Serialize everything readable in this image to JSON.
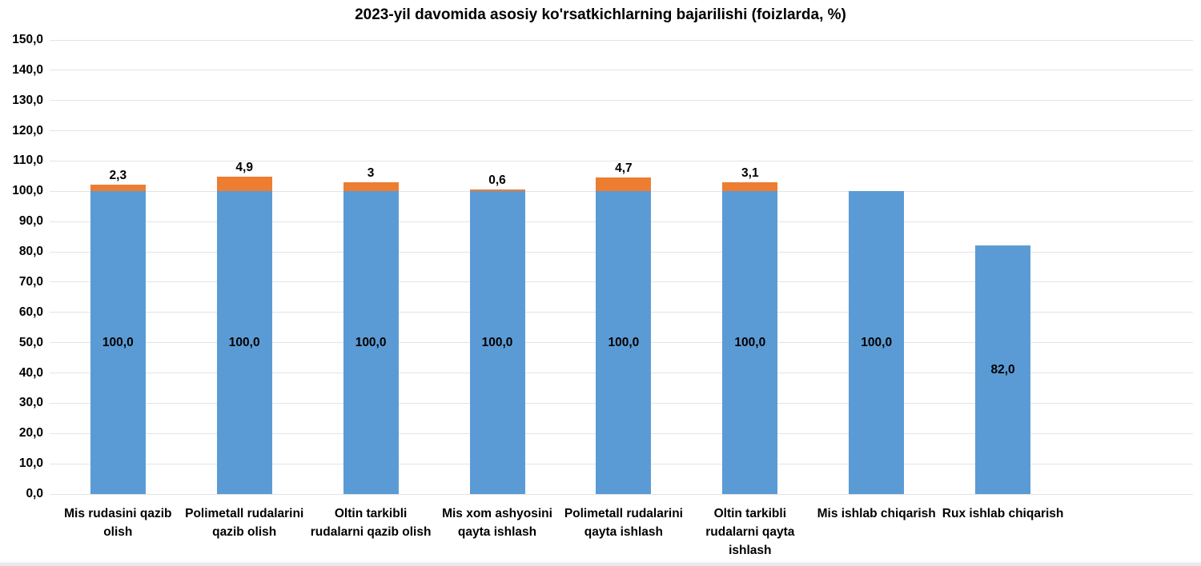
{
  "chart_data": {
    "type": "bar",
    "stacked": true,
    "title": "2023-yil davomida asosiy ko'rsatkichlarning bajarilishi (foizlarda, %)",
    "categories": [
      "Mis rudasini qazib olish",
      "Polimetall rudalarini qazib olish",
      "Oltin tarkibli rudalarni qazib olish",
      "Mis xom ashyosini qayta ishlash",
      "Polimetall rudalarini qayta ishlash",
      "Oltin tarkibli rudalarni qayta ishlash",
      "Mis ishlab chiqarish",
      "Rux ishlab chiqarish"
    ],
    "series": [
      {
        "name": "blue-base",
        "color": "#5B9BD5",
        "values": [
          100.0,
          100.0,
          100.0,
          100.0,
          100.0,
          100.0,
          100.0,
          82.0
        ],
        "labels": [
          "100,0",
          "100,0",
          "100,0",
          "100,0",
          "100,0",
          "100,0",
          "100,0",
          "82,0"
        ]
      },
      {
        "name": "orange-overrun",
        "color": "#ED7D31",
        "values": [
          2.3,
          4.9,
          3,
          0.6,
          4.7,
          3.1,
          0,
          0
        ],
        "labels": [
          "2,3",
          "4,9",
          "3",
          "0,6",
          "4,7",
          "3,1",
          "",
          ""
        ]
      }
    ],
    "y_axis": {
      "min": 0,
      "max": 150,
      "step": 10,
      "tick_labels": [
        "0,0",
        "10,0",
        "20,0",
        "30,0",
        "40,0",
        "50,0",
        "60,0",
        "70,0",
        "80,0",
        "90,0",
        "100,0",
        "110,0",
        "120,0",
        "130,0",
        "140,0",
        "150,0"
      ]
    },
    "grid": "horizontal",
    "legend": "none",
    "colors": {
      "blue": "#5B9BD5",
      "orange": "#ED7D31",
      "gridline": "#e4e4e4",
      "text": "#000000",
      "background": "#ffffff"
    }
  }
}
